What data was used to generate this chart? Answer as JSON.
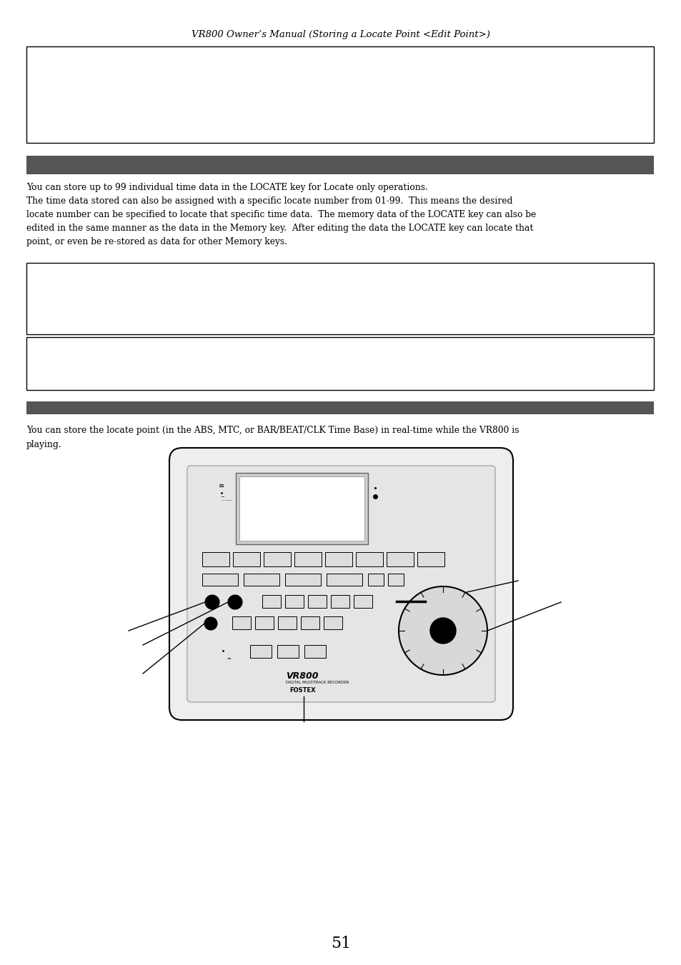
{
  "page_title": "VR800 Owner’s Manual (Storing a Locate Point <Edit Point>)",
  "page_number": "51",
  "background_color": "#ffffff",
  "header_bar_color": "#555555",
  "para1_lines": [
    "You can store up to 99 individual time data in the LOCATE key for Locate only operations.",
    "The time data stored can also be assigned with a specific locate number from 01-99.  This means the desired",
    "locate number can be specified to locate that specific time data.  The memory data of the LOCATE key can also be",
    "edited in the same manner as the data in the Memory key.  After editing the data the LOCATE key can locate that",
    "point, or even be re-stored as data for other Memory keys."
  ],
  "para2_line1": "You can store the locate point (in the ABS, MTC, or BAR/BEAT/CLK Time Base) in real-time while the VR800 is",
  "para2_line2": "playing."
}
